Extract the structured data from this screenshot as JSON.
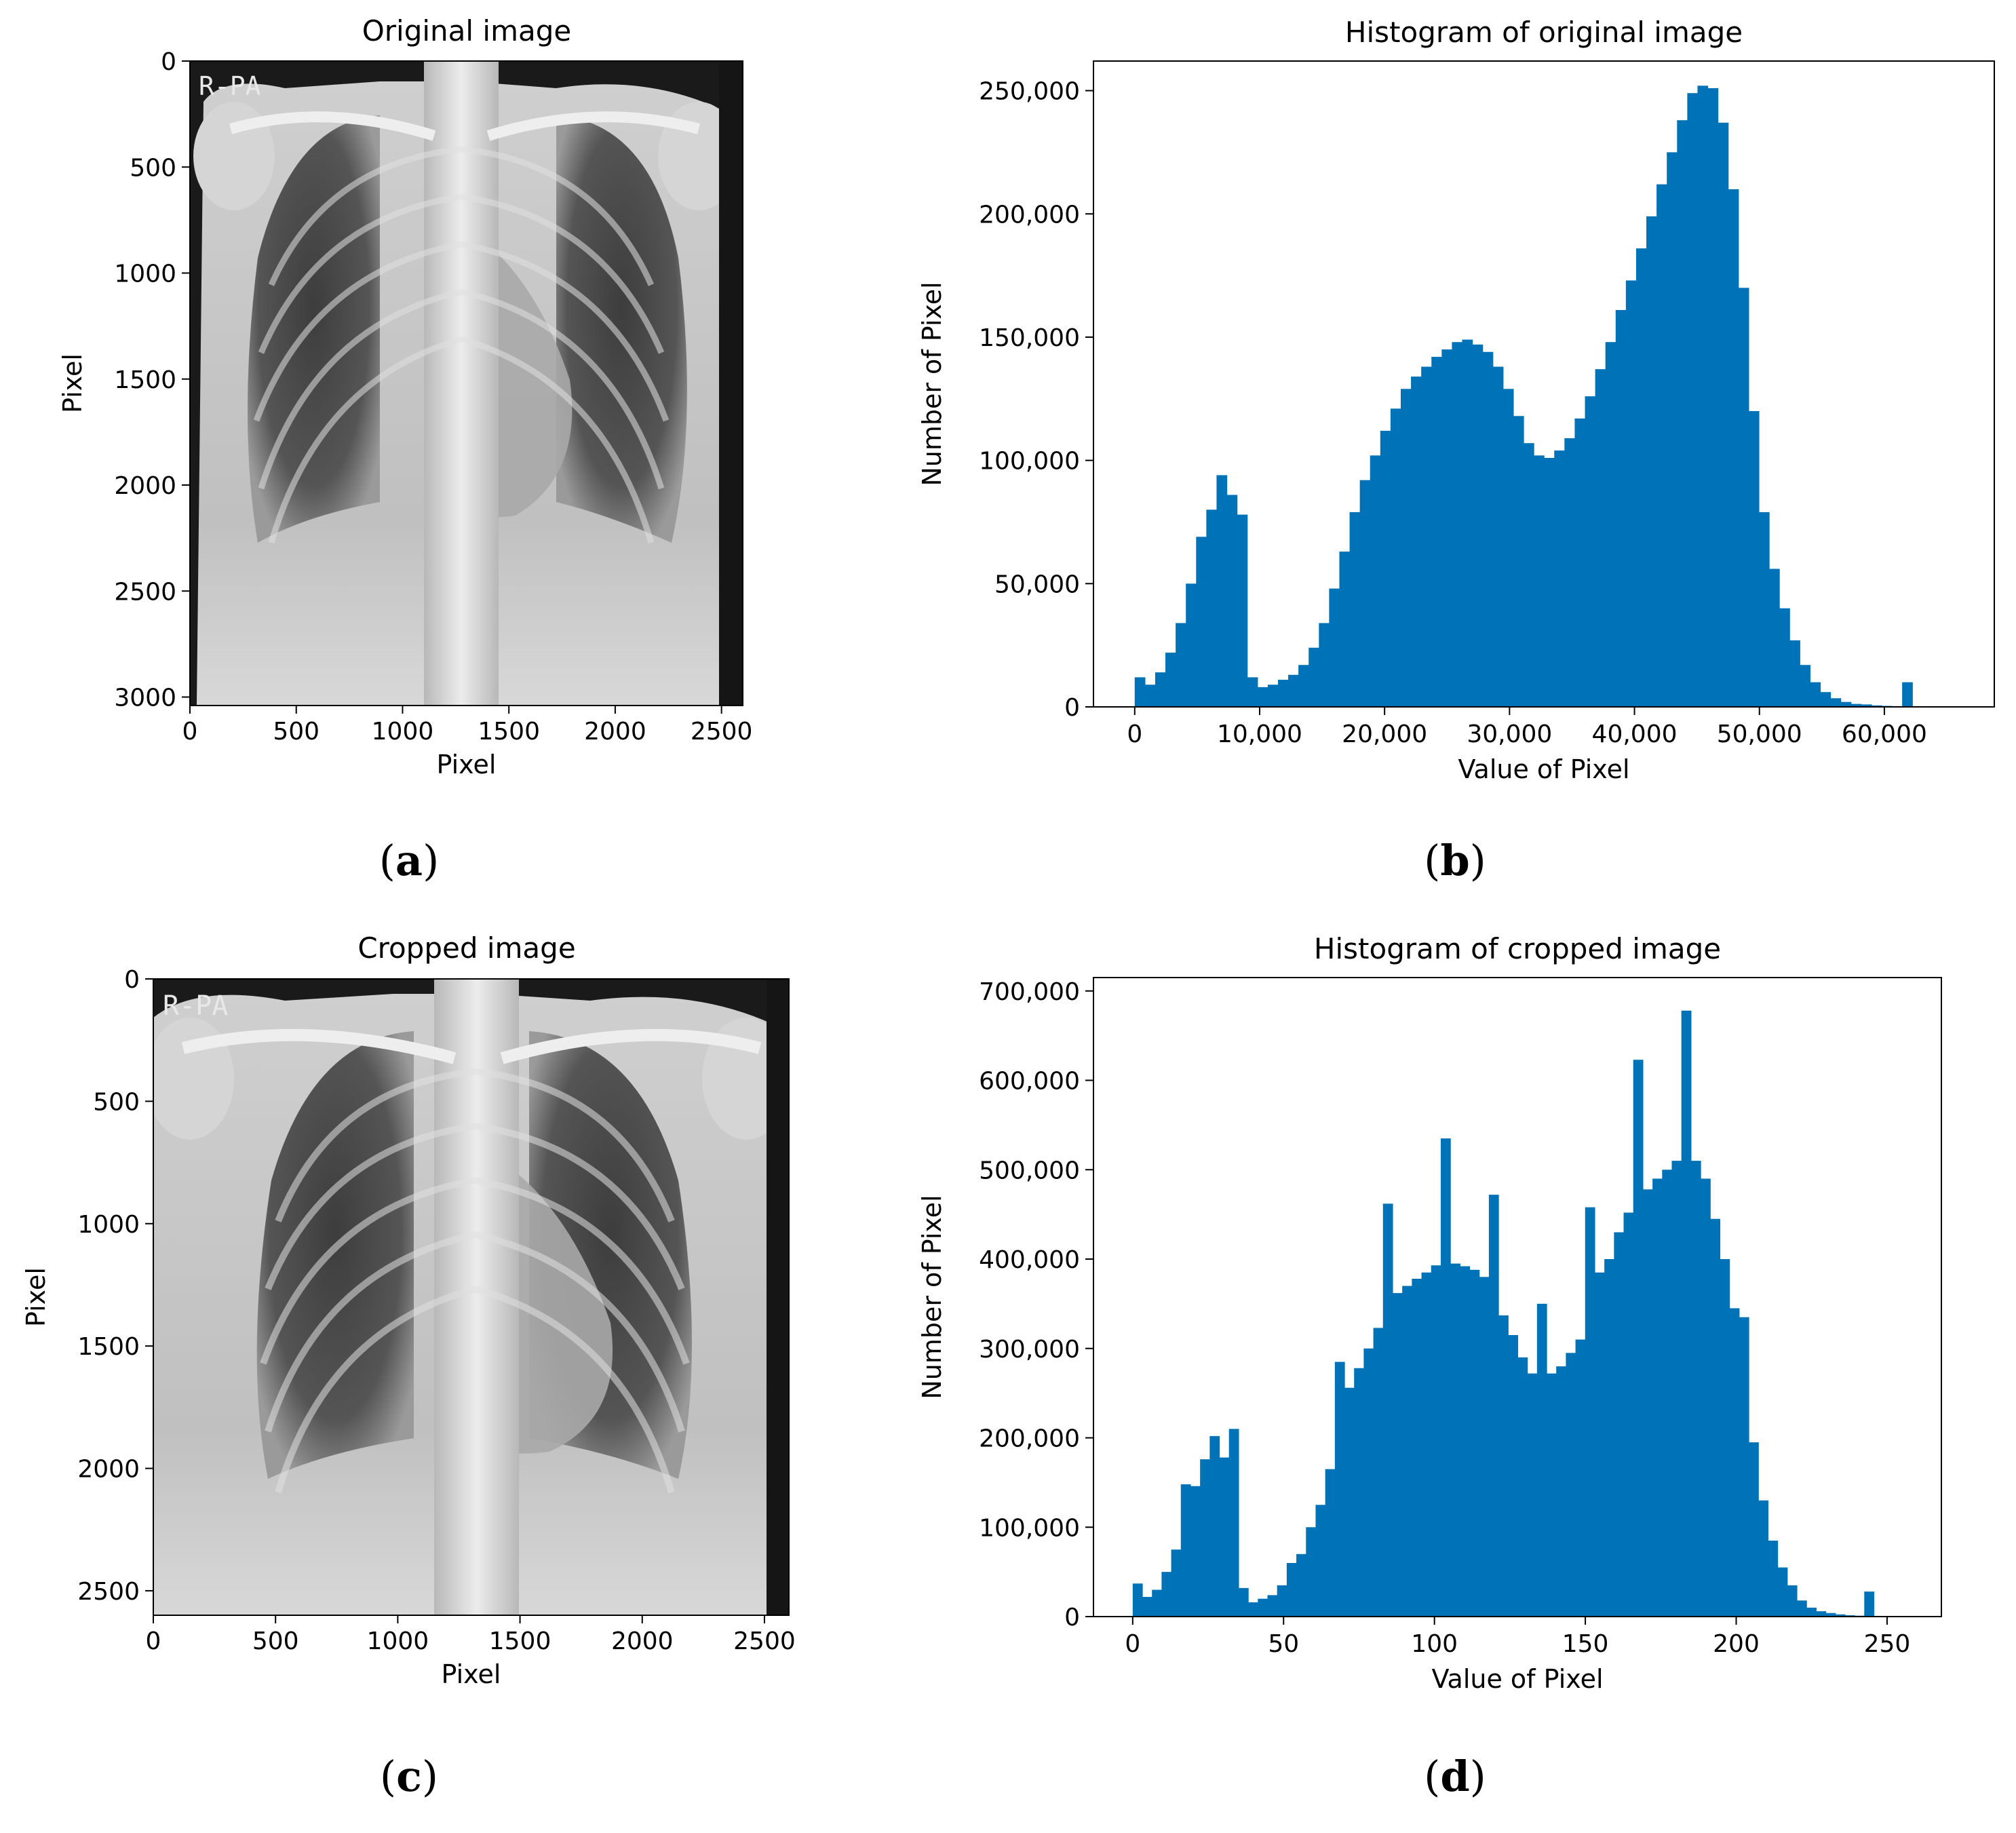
{
  "colors": {
    "bar": "#0072b8",
    "axis": "#000000",
    "xray_dark": "#141414",
    "xray_mid": "#7a7a7a",
    "xray_light": "#e6e6e6"
  },
  "panels": {
    "a": {
      "caption_letter": "a",
      "title": "Original image",
      "xlabel": "Pixel",
      "ylabel": "Pixel",
      "xticks": [
        0,
        500,
        1000,
        1500,
        2000,
        2500
      ],
      "yticks": [
        0,
        500,
        1000,
        1500,
        2000,
        2500,
        3000
      ],
      "xlim": [
        0,
        2600
      ],
      "ylim": [
        0,
        3040
      ],
      "overlay_text": "R-PA"
    },
    "c": {
      "caption_letter": "c",
      "title": "Cropped image",
      "xlabel": "Pixel",
      "ylabel": "Pixel",
      "xticks": [
        0,
        500,
        1000,
        1500,
        2000,
        2500
      ],
      "yticks": [
        0,
        500,
        1000,
        1500,
        2000,
        2500
      ],
      "xlim": [
        0,
        2600
      ],
      "ylim": [
        0,
        2600
      ],
      "overlay_text": "R-PA"
    }
  },
  "chart_data": [
    {
      "id": "b",
      "type": "bar",
      "caption_letter": "b",
      "title": "Histogram of original image",
      "xlabel": "Value of Pixel",
      "ylabel": "Number of Pixel",
      "xlim": [
        -3300,
        68800
      ],
      "ylim": [
        0,
        262000
      ],
      "xticks": [
        0,
        10000,
        20000,
        30000,
        40000,
        50000,
        60000
      ],
      "xtick_labels": [
        "0",
        "10,000",
        "20,000",
        "30,000",
        "40,000",
        "50,000",
        "60,000"
      ],
      "yticks": [
        0,
        50000,
        100000,
        150000,
        200000,
        250000
      ],
      "ytick_labels": [
        "0",
        "50,000",
        "100,000",
        "150,000",
        "200,000",
        "250,000"
      ],
      "bin_start": 0,
      "bin_width": 819,
      "values": [
        12000,
        9000,
        14000,
        22000,
        34000,
        50000,
        69000,
        80000,
        94000,
        86000,
        78000,
        12000,
        8000,
        9000,
        11000,
        13000,
        17000,
        24000,
        34000,
        48000,
        63000,
        79000,
        92000,
        102000,
        112000,
        121000,
        129000,
        134000,
        138000,
        142000,
        145000,
        148000,
        149000,
        147000,
        144000,
        138000,
        129000,
        118000,
        107000,
        102000,
        101000,
        104000,
        109000,
        117000,
        126000,
        137000,
        148000,
        161000,
        173000,
        186000,
        199000,
        212000,
        225000,
        238000,
        249000,
        252000,
        251000,
        237000,
        210000,
        170000,
        120000,
        79000,
        56000,
        40000,
        27000,
        17000,
        10000,
        6000,
        3500,
        2000,
        1200,
        1000,
        600,
        400,
        300,
        10000
      ]
    },
    {
      "id": "d",
      "type": "bar",
      "caption_letter": "d",
      "title": "Histogram of cropped image",
      "xlabel": "Value of Pixel",
      "ylabel": "Number of Pixel",
      "xlim": [
        -13,
        268
      ],
      "ylim": [
        0,
        715000
      ],
      "xticks": [
        0,
        50,
        100,
        150,
        200,
        250
      ],
      "xtick_labels": [
        "0",
        "50",
        "100",
        "150",
        "200",
        "250"
      ],
      "yticks": [
        0,
        100000,
        200000,
        300000,
        400000,
        500000,
        600000,
        700000
      ],
      "ytick_labels": [
        "0",
        "100,000",
        "200,000",
        "300,000",
        "400,000",
        "500,000",
        "600,000",
        "700,000"
      ],
      "bin_start": 0,
      "bin_width": 3.19,
      "values": [
        37000,
        22000,
        30000,
        50000,
        75000,
        148000,
        146000,
        176000,
        202000,
        178000,
        210000,
        32000,
        16000,
        20000,
        24000,
        35000,
        60000,
        70000,
        100000,
        125000,
        165000,
        285000,
        256000,
        278000,
        300000,
        323000,
        462000,
        362000,
        370000,
        378000,
        385000,
        393000,
        535000,
        395000,
        392000,
        388000,
        380000,
        472000,
        337000,
        315000,
        290000,
        272000,
        350000,
        272000,
        280000,
        295000,
        310000,
        458000,
        385000,
        400000,
        430000,
        452000,
        623000,
        478000,
        490000,
        500000,
        510000,
        678000,
        510000,
        490000,
        445000,
        400000,
        345000,
        335000,
        195000,
        130000,
        85000,
        55000,
        35000,
        18000,
        10000,
        6000,
        4000,
        2500,
        1500,
        1000,
        28000
      ]
    }
  ]
}
